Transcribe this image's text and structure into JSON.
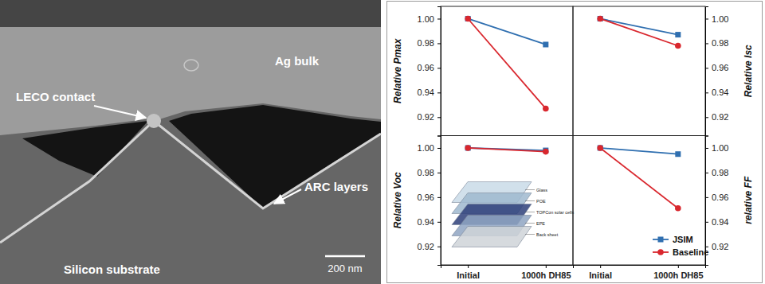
{
  "chart_data": [
    {
      "type": "line",
      "y_label": "Relative Pmax",
      "categories": [
        "Initial",
        "1000h DH85"
      ],
      "series": [
        {
          "name": "JSIM",
          "color": "#2f6fb0",
          "marker": "square",
          "values": [
            1.0,
            0.979
          ]
        },
        {
          "name": "Baseline",
          "color": "#d9272e",
          "marker": "circle",
          "values": [
            1.0,
            0.927
          ]
        }
      ],
      "ylim": [
        0.905,
        1.01
      ],
      "yticks": [
        0.92,
        0.94,
        0.96,
        0.98,
        {
          "value": 1,
          "label": "1.00"
        }
      ],
      "tick_labels": "y"
    },
    {
      "type": "line",
      "y_label": "Relative Isc",
      "categories": [
        "Initial",
        "1000h DH85"
      ],
      "series": [
        {
          "name": "JSIM",
          "color": "#2f6fb0",
          "marker": "square",
          "axis": "y2",
          "values": [
            1.0,
            0.987
          ]
        },
        {
          "name": "Baseline",
          "color": "#d9272e",
          "marker": "circle",
          "axis": "y2",
          "values": [
            1.0,
            0.978
          ]
        }
      ],
      "y2lim": [
        0.905,
        1.01
      ],
      "y2ticks": [
        0.92,
        0.94,
        0.96,
        0.98,
        {
          "value": 1,
          "label": "1.00"
        }
      ],
      "tick_labels": "y"
    },
    {
      "type": "line",
      "y_label": "Relative Voc",
      "categories": [
        "Initial",
        "1000h DH85"
      ],
      "series": [
        {
          "name": "JSIM",
          "color": "#2f6fb0",
          "marker": "square",
          "values": [
            1.0,
            0.998
          ]
        },
        {
          "name": "Baseline",
          "color": "#d9272e",
          "marker": "circle",
          "values": [
            1.0,
            0.997
          ]
        }
      ],
      "ylim": [
        0.905,
        1.01
      ],
      "yticks": [
        0.92,
        0.94,
        0.96,
        0.98,
        {
          "value": 1,
          "label": "1.00"
        }
      ],
      "tick_labels": true
    },
    {
      "type": "line",
      "y_label": "relative FF",
      "categories": [
        "Initial",
        "1000h DH85"
      ],
      "series": [
        {
          "name": "JSIM",
          "color": "#2f6fb0",
          "marker": "square",
          "axis": "y2",
          "values": [
            1.0,
            0.995
          ]
        },
        {
          "name": "Baseline",
          "color": "#d9272e",
          "marker": "circle",
          "axis": "y2",
          "values": [
            1.0,
            0.951
          ]
        }
      ],
      "y2lim": [
        0.905,
        1.01
      ],
      "y2ticks": [
        0.92,
        0.94,
        0.96,
        0.98,
        {
          "value": 1,
          "label": "1.00"
        }
      ],
      "tick_labels": true,
      "legend": "lower right"
    }
  ],
  "micrograph": {
    "labels": [
      "Ag bulk",
      "LECO contact",
      "ARC layers",
      "Silicon substrate"
    ],
    "scale_bar": "200 nm"
  },
  "inset": {
    "layers": [
      "Glass",
      "POE",
      "TOPCon solar cells",
      "EPE",
      "Back sheet"
    ]
  }
}
